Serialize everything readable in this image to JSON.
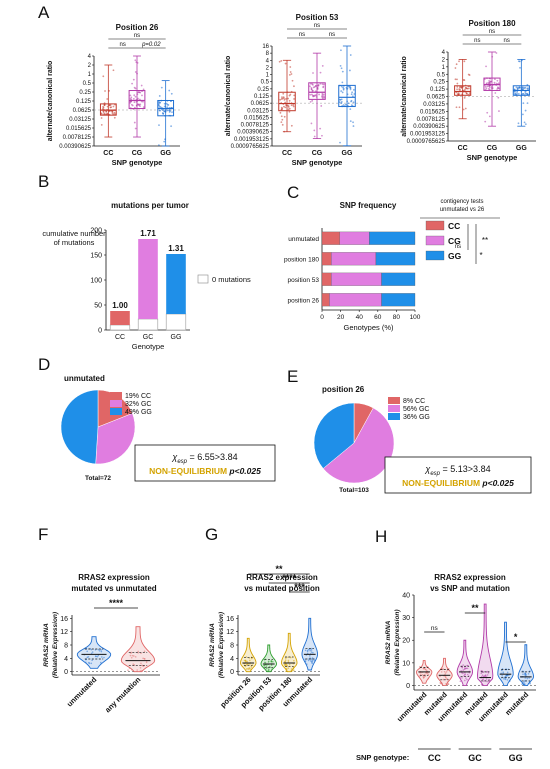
{
  "figure": {
    "panel_letters": [
      "A",
      "B",
      "C",
      "D",
      "E",
      "F",
      "G",
      "H"
    ]
  },
  "chart_data": [
    {
      "id": "A1",
      "type": "box",
      "title": "Position 26",
      "ylabel": "alternate/canonical ratio",
      "xlabel": "SNP genotype",
      "scale": "log2",
      "yticks": [
        "0.00390625",
        "0.0078125",
        "0.015625",
        "0.03125",
        "0.0625",
        "0.125",
        "0.25",
        "0.5",
        "1",
        "2",
        "4"
      ],
      "categories": [
        "CC",
        "CG",
        "GG"
      ],
      "colors": [
        "#c0392b",
        "#b23aa8",
        "#1f6fd1"
      ],
      "boxes": [
        {
          "q1": 0.042,
          "median": 0.062,
          "q3": 0.1,
          "min": 0.0078,
          "max": 2.0
        },
        {
          "q1": 0.07,
          "median": 0.13,
          "q3": 0.28,
          "min": 0.0078,
          "max": 4.0
        },
        {
          "q1": 0.04,
          "median": 0.07,
          "q3": 0.13,
          "min": 0.0039,
          "max": 0.6
        }
      ],
      "brackets": [
        {
          "from": 0,
          "to": 2,
          "label": "ns"
        },
        {
          "from": 0,
          "to": 1,
          "label": "ns"
        },
        {
          "from": 1,
          "to": 2,
          "label": "p=0.02"
        }
      ]
    },
    {
      "id": "A2",
      "type": "box",
      "title": "Position 53",
      "ylabel": "alternate/canonical ratio",
      "xlabel": "SNP genotype",
      "scale": "log2",
      "yticks": [
        "0.0009765625",
        "0.001953125",
        "0.00390625",
        "0.0078125",
        "0.015625",
        "0.03125",
        "0.0625",
        "0.125",
        "0.25",
        "0.5",
        "1",
        "2",
        "4",
        "8",
        "16"
      ],
      "categories": [
        "CC",
        "CG",
        "GG"
      ],
      "colors": [
        "#c0392b",
        "#b23aa8",
        "#1f6fd1"
      ],
      "boxes": [
        {
          "q1": 0.03,
          "median": 0.06,
          "q3": 0.18,
          "min": 0.0039,
          "max": 4.0
        },
        {
          "q1": 0.09,
          "median": 0.18,
          "q3": 0.45,
          "min": 0.002,
          "max": 8.0
        },
        {
          "q1": 0.045,
          "median": 0.11,
          "q3": 0.35,
          "min": 0.001,
          "max": 16.0
        }
      ],
      "brackets": [
        {
          "from": 0,
          "to": 2,
          "label": "ns"
        },
        {
          "from": 0,
          "to": 1,
          "label": "ns"
        },
        {
          "from": 1,
          "to": 2,
          "label": "ns"
        }
      ]
    },
    {
      "id": "A3",
      "type": "box",
      "title": "Position 180",
      "ylabel": "alternate/canonical ratio",
      "xlabel": "SNP genotype",
      "scale": "log2",
      "yticks": [
        "0.0009765625",
        "0.001953125",
        "0.00390625",
        "0.0078125",
        "0.015625",
        "0.03125",
        "0.0625",
        "0.125",
        "0.25",
        "0.5",
        "1",
        "2",
        "4"
      ],
      "categories": [
        "CC",
        "CG",
        "GG"
      ],
      "colors": [
        "#c0392b",
        "#b23aa8",
        "#1f6fd1"
      ],
      "boxes": [
        {
          "q1": 0.07,
          "median": 0.1,
          "q3": 0.17,
          "min": 0.0078,
          "max": 2.0
        },
        {
          "q1": 0.11,
          "median": 0.19,
          "q3": 0.35,
          "min": 0.0039,
          "max": 4.0
        },
        {
          "q1": 0.07,
          "median": 0.11,
          "q3": 0.17,
          "min": 0.0039,
          "max": 2.0
        }
      ],
      "brackets": [
        {
          "from": 0,
          "to": 2,
          "label": "ns"
        },
        {
          "from": 0,
          "to": 1,
          "label": "ns"
        },
        {
          "from": 1,
          "to": 2,
          "label": "ns"
        }
      ]
    },
    {
      "id": "B",
      "type": "bar",
      "title": "mutations per tumor",
      "ylabel": "cumulative number\nof mutations",
      "xlabel": "Genotype",
      "ylim": [
        0,
        200
      ],
      "yticks": [
        "0",
        "50",
        "100",
        "150",
        "200"
      ],
      "categories": [
        "CC",
        "GC",
        "GG"
      ],
      "series": [
        {
          "name": "0 mutations",
          "values": [
            10,
            22,
            32
          ]
        },
        {
          "values": [
            28,
            160,
            120
          ]
        }
      ],
      "colors": [
        "#e06666",
        "#e07de0",
        "#1f8fe8"
      ],
      "bar_labels": [
        "1.00",
        "1.71",
        "1.31"
      ]
    },
    {
      "id": "C",
      "type": "bar-stacked-horizontal",
      "title": "SNP frequency",
      "xlabel": "Genotypes (%)",
      "xlim": [
        0,
        100
      ],
      "xticks": [
        "0",
        "20",
        "40",
        "60",
        "80",
        "100"
      ],
      "categories": [
        "unmutated",
        "position 180",
        "position 53",
        "position 26"
      ],
      "series": [
        {
          "name": "CC",
          "values": [
            19,
            10,
            10,
            8
          ]
        },
        {
          "name": "CG",
          "values": [
            32,
            48,
            54,
            56
          ]
        },
        {
          "name": "GG",
          "values": [
            49,
            42,
            36,
            36
          ]
        }
      ],
      "colors": [
        "#e06666",
        "#e07de0",
        "#1f8fe8"
      ],
      "legend_title": "contigency tests\nunmutated vs 26",
      "legend_labels": [
        "CC",
        "CG",
        "GG"
      ],
      "sig_labels": [
        "**",
        "ns",
        "*"
      ]
    },
    {
      "id": "D",
      "type": "pie",
      "title": "unmutated",
      "slices": [
        {
          "label": "19% CC",
          "value": 19
        },
        {
          "label": "32% GC",
          "value": 32
        },
        {
          "label": "49% GG",
          "value": 49
        }
      ],
      "colors": [
        "#e06666",
        "#e07de0",
        "#1f8fe8"
      ],
      "chi_value": "6.55>3.84",
      "chi_text": "NON-EQUILIBRIUM",
      "p_text": "p<0.025",
      "total": "Total=72"
    },
    {
      "id": "E",
      "type": "pie",
      "title": "position 26",
      "slices": [
        {
          "label": "8% CC",
          "value": 8
        },
        {
          "label": "56% GC",
          "value": 56
        },
        {
          "label": "36% GG",
          "value": 36
        }
      ],
      "colors": [
        "#e06666",
        "#e07de0",
        "#1f8fe8"
      ],
      "chi_value": "5.13>3.84",
      "chi_text": "NON-EQUILIBRIUM",
      "p_text": "p<0.025",
      "total": "Total=103"
    },
    {
      "id": "F",
      "type": "violin",
      "title": "RRAS2 expression\nmutated vs unmutated",
      "ylabel": "RRAS2 mRNA\n(Relative Expression)",
      "ylim": [
        -1,
        17
      ],
      "yticks": [
        "0",
        "4",
        "8",
        "12",
        "16"
      ],
      "categories": [
        "unmutated",
        "any mutation"
      ],
      "colors": [
        "#1f6fd1",
        "#e06666"
      ],
      "groups": [
        {
          "q1": 3.8,
          "median": 5.2,
          "q3": 6.8,
          "min": 1.0,
          "max": 10.5
        },
        {
          "q1": 1.8,
          "median": 3.3,
          "q3": 5.7,
          "min": 0.0,
          "max": 13.5
        }
      ],
      "brackets": [
        {
          "from": 0,
          "to": 1,
          "label": "****"
        }
      ]
    },
    {
      "id": "G",
      "type": "violin",
      "title": "RRAS2 expression\nvs mutated position",
      "ylabel": "RRAS2 mRNA\n(Relative Expression)",
      "ylim": [
        -1,
        17
      ],
      "yticks": [
        "0",
        "4",
        "8",
        "12",
        "16"
      ],
      "categories": [
        "position 26",
        "position 53",
        "position 180",
        "unmutated"
      ],
      "colors": [
        "#d4a300",
        "#2e9e2e",
        "#d4a300",
        "#1f6fd1"
      ],
      "groups": [
        {
          "q1": 1.8,
          "median": 2.6,
          "q3": 4.2,
          "min": 0.0,
          "max": 10.0
        },
        {
          "q1": 1.2,
          "median": 2.3,
          "q3": 3.6,
          "min": 0.0,
          "max": 8.0
        },
        {
          "q1": 1.5,
          "median": 2.6,
          "q3": 4.4,
          "min": 0.0,
          "max": 11.5
        },
        {
          "q1": 3.8,
          "median": 5.2,
          "q3": 7.0,
          "min": 0.5,
          "max": 16.0
        }
      ],
      "brackets": [
        {
          "from": 0,
          "to": 3,
          "label": "**"
        },
        {
          "from": 1,
          "to": 3,
          "label": "****"
        },
        {
          "from": 2,
          "to": 3,
          "label": "***"
        }
      ]
    },
    {
      "id": "H",
      "type": "violin",
      "title": "RRAS2 expression\nvs SNP and mutation",
      "ylabel": "RRAS2 mRNA\n(Relative Expression)",
      "ylim": [
        -2,
        40
      ],
      "yticks": [
        "0",
        "10",
        "20",
        "30",
        "40"
      ],
      "categories": [
        "unmutated",
        "mutated",
        "unmutated",
        "mutated",
        "unmutated",
        "mutated"
      ],
      "colors": [
        "#e06666",
        "#e06666",
        "#b23aa8",
        "#b23aa8",
        "#1f6fd1",
        "#1f6fd1"
      ],
      "groups": [
        {
          "q1": 4.5,
          "median": 6.0,
          "q3": 8.0,
          "min": 1.0,
          "max": 11.0
        },
        {
          "q1": 2.5,
          "median": 4.5,
          "q3": 7.0,
          "min": 0.0,
          "max": 12.0
        },
        {
          "q1": 4.0,
          "median": 6.0,
          "q3": 8.5,
          "min": 0.0,
          "max": 20.0
        },
        {
          "q1": 2.0,
          "median": 3.5,
          "q3": 6.0,
          "min": 0.0,
          "max": 36.0
        },
        {
          "q1": 3.5,
          "median": 5.0,
          "q3": 7.0,
          "min": 0.0,
          "max": 28.0
        },
        {
          "q1": 2.0,
          "median": 3.8,
          "q3": 6.0,
          "min": 0.0,
          "max": 18.0
        }
      ],
      "brackets": [
        {
          "from": 0,
          "to": 1,
          "label": "ns"
        },
        {
          "from": 2,
          "to": 3,
          "label": "**"
        },
        {
          "from": 4,
          "to": 5,
          "label": "*"
        }
      ],
      "genotype_prefix": "SNP genotype:",
      "genotype_groups": [
        "CC",
        "GC",
        "GG"
      ]
    }
  ]
}
